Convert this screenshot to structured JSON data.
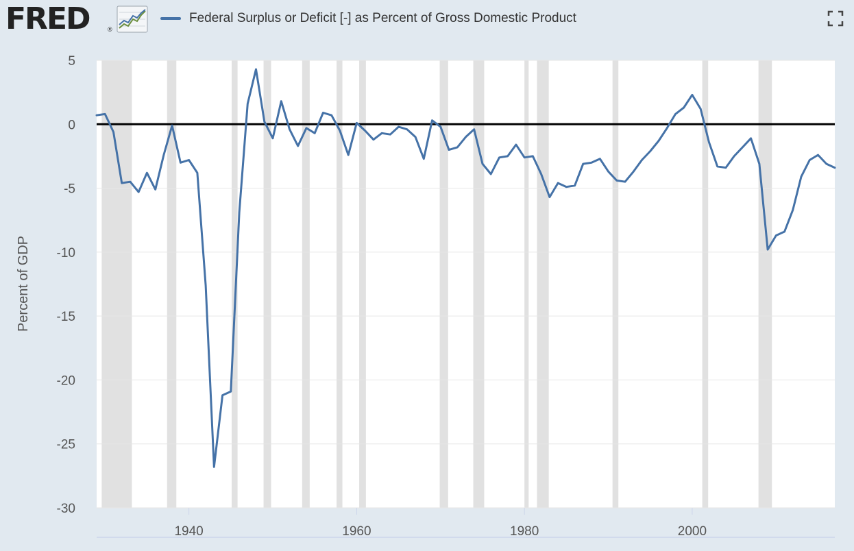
{
  "header": {
    "logo_text": "FRED",
    "logo_reg": "®"
  },
  "colors": {
    "series": "#4572a7",
    "recession": "#e1e1e1",
    "background": "#e1e9f0",
    "zero_line": "#000000"
  },
  "icons": {
    "logo_graph": "line-chart-icon",
    "expand": "fullscreen-icon"
  },
  "chart_data": {
    "type": "line",
    "title": "",
    "xlabel": "",
    "ylabel": "Percent of GDP",
    "xlim": [
      1929,
      2017
    ],
    "ylim": [
      -30,
      5
    ],
    "yticks": [
      5,
      0,
      -5,
      -10,
      -15,
      -20,
      -25,
      -30
    ],
    "ytick_labels": [
      "5",
      "0",
      "-5",
      "-10",
      "-15",
      "-20",
      "-25",
      "-30"
    ],
    "xticks": [
      1940,
      1960,
      1980,
      2000
    ],
    "xtick_labels": [
      "1940",
      "1960",
      "1980",
      "2000"
    ],
    "zero_line": 0,
    "grid": "horizontal",
    "legend_position": "top",
    "recessions": [
      [
        1929.6,
        1933.2
      ],
      [
        1937.4,
        1938.5
      ],
      [
        1945.1,
        1945.8
      ],
      [
        1948.9,
        1949.8
      ],
      [
        1953.5,
        1954.4
      ],
      [
        1957.6,
        1958.3
      ],
      [
        1960.3,
        1961.1
      ],
      [
        1969.9,
        1970.9
      ],
      [
        1973.9,
        1975.2
      ],
      [
        1980.0,
        1980.5
      ],
      [
        1981.5,
        1982.9
      ],
      [
        1990.5,
        1991.2
      ],
      [
        2001.2,
        2001.9
      ],
      [
        2007.9,
        2009.5
      ]
    ],
    "series": [
      {
        "name": "Federal Surplus or Deficit [-] as Percent of Gross Domestic Product",
        "x": [
          1929,
          1930,
          1931,
          1932,
          1933,
          1934,
          1935,
          1936,
          1937,
          1938,
          1939,
          1940,
          1941,
          1942,
          1943,
          1944,
          1945,
          1946,
          1947,
          1948,
          1949,
          1950,
          1951,
          1952,
          1953,
          1954,
          1955,
          1956,
          1957,
          1958,
          1959,
          1960,
          1961,
          1962,
          1963,
          1964,
          1965,
          1966,
          1967,
          1968,
          1969,
          1970,
          1971,
          1972,
          1973,
          1974,
          1975,
          1976,
          1977,
          1978,
          1979,
          1980,
          1981,
          1982,
          1983,
          1984,
          1985,
          1986,
          1987,
          1988,
          1989,
          1990,
          1991,
          1992,
          1993,
          1994,
          1995,
          1996,
          1997,
          1998,
          1999,
          2000,
          2001,
          2002,
          2003,
          2004,
          2005,
          2006,
          2007,
          2008,
          2009,
          2010,
          2011,
          2012,
          2013,
          2014,
          2015,
          2016,
          2017
        ],
        "values": [
          0.7,
          0.8,
          -0.6,
          -4.6,
          -4.5,
          -5.3,
          -3.8,
          -5.1,
          -2.4,
          -0.1,
          -3.0,
          -2.8,
          -3.8,
          -12.6,
          -26.8,
          -21.2,
          -20.9,
          -6.9,
          1.6,
          4.3,
          0.2,
          -1.1,
          1.8,
          -0.4,
          -1.7,
          -0.3,
          -0.7,
          0.9,
          0.7,
          -0.5,
          -2.4,
          0.1,
          -0.5,
          -1.2,
          -0.7,
          -0.8,
          -0.2,
          -0.4,
          -1.0,
          -2.7,
          0.3,
          -0.2,
          -2.0,
          -1.8,
          -1.0,
          -0.4,
          -3.1,
          -3.9,
          -2.6,
          -2.5,
          -1.6,
          -2.6,
          -2.5,
          -3.9,
          -5.7,
          -4.6,
          -4.9,
          -4.8,
          -3.1,
          -3.0,
          -2.7,
          -3.7,
          -4.4,
          -4.5,
          -3.7,
          -2.8,
          -2.1,
          -1.3,
          -0.3,
          0.8,
          1.3,
          2.3,
          1.2,
          -1.4,
          -3.3,
          -3.4,
          -2.5,
          -1.8,
          -1.1,
          -3.1,
          -9.8,
          -8.7,
          -8.4,
          -6.7,
          -4.1,
          -2.8,
          -2.4,
          -3.1,
          -3.4
        ]
      }
    ]
  }
}
